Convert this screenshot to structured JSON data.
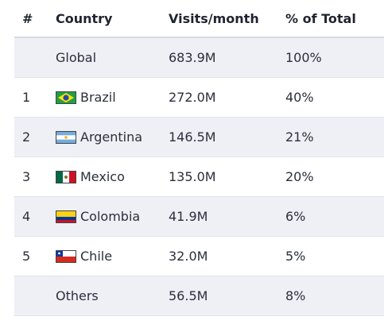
{
  "table": {
    "headers": {
      "rank": "#",
      "country": "Country",
      "visits": "Visits/month",
      "percent": "% of Total"
    },
    "rows": [
      {
        "rank": "",
        "country": "Global",
        "visits": "683.9M",
        "percent": "100%",
        "flag": ""
      },
      {
        "rank": "1",
        "country": "Brazil",
        "visits": "272.0M",
        "percent": "40%",
        "flag": "brazil-flag-icon"
      },
      {
        "rank": "2",
        "country": "Argentina",
        "visits": "146.5M",
        "percent": "21%",
        "flag": "argentina-flag-icon"
      },
      {
        "rank": "3",
        "country": "Mexico",
        "visits": "135.0M",
        "percent": "20%",
        "flag": "mexico-flag-icon"
      },
      {
        "rank": "4",
        "country": "Colombia",
        "visits": "41.9M",
        "percent": "6%",
        "flag": "colombia-flag-icon"
      },
      {
        "rank": "5",
        "country": "Chile",
        "visits": "32.0M",
        "percent": "5%",
        "flag": "chile-flag-icon"
      },
      {
        "rank": "",
        "country": "Others",
        "visits": "56.5M",
        "percent": "8%",
        "flag": ""
      }
    ]
  },
  "colors": {
    "row_shade": "#eef0f5",
    "text": "#2b2f3a",
    "divider": "#dfe3ea"
  }
}
